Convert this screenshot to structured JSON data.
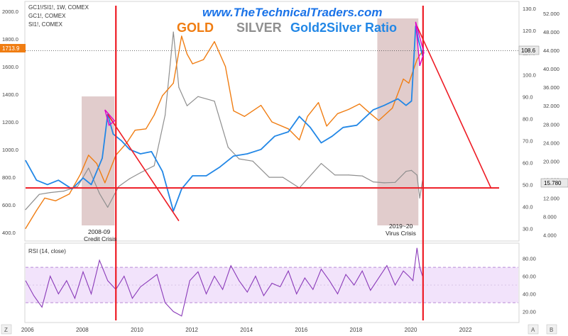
{
  "header": {
    "symbol_line": "GC1!/SI1!, 1W, COMEX",
    "series_line_1": "GC1!, COMEX",
    "series_line_2": "SI1!, COMEX",
    "website": "www.TheTechnicalTraders.com",
    "legend_gold": "GOLD",
    "legend_silver": "SILVER",
    "legend_ratio": "Gold2Silver Ratio"
  },
  "colors": {
    "gold": "#f07d12",
    "silver": "#8f8f8f",
    "ratio": "#2287e6",
    "red": "#ee1c25",
    "rsi": "#8a3ab9",
    "rsi_band": "#f2e3fb",
    "crisis_box": "#c9a3a3",
    "website": "#1a73e8"
  },
  "annotations": {
    "crisis_2008": [
      "2008-09",
      "Credit Crisis"
    ],
    "crisis_2020": [
      "2019~20",
      "Virus Crisis"
    ]
  },
  "price_labels": {
    "gold_last": "1713.9",
    "ratio_last": "108.6",
    "silver_last": "15.780"
  },
  "rsi_panel": {
    "label": "RSI (14, close)",
    "ticks": [
      "80.00",
      "60.00",
      "40.00",
      "20.00"
    ]
  },
  "bottom_buttons": {
    "left": "Z",
    "middle": "A",
    "right": "B"
  },
  "chart_data": {
    "type": "line",
    "x_ticks": [
      "2006",
      "2008",
      "2010",
      "2012",
      "2014",
      "2016",
      "2018",
      "2020",
      "2022"
    ],
    "gold_axis_ticks": [
      "2000.0",
      "1800.0",
      "1600.0",
      "1400.0",
      "1200.0",
      "1000.0",
      "800.0",
      "600.0",
      "400.0"
    ],
    "ratio_axis_ticks": [
      "130.0",
      "120.0",
      "110.0",
      "100.0",
      "90.0",
      "80.0",
      "70.0",
      "60.0",
      "50.0",
      "40.0",
      "30.0"
    ],
    "silver_axis_ticks": [
      "52.000",
      "48.000",
      "44.000",
      "40.000",
      "36.000",
      "32.000",
      "28.000",
      "24.000",
      "20.000",
      "16.000",
      "12.000",
      "8.000",
      "4.000"
    ],
    "gold_range": [
      350,
      2050
    ],
    "ratio_range": [
      25,
      132
    ],
    "silver_range": [
      3,
      54
    ],
    "series": [
      {
        "name": "GOLD",
        "x": [
          2005.9,
          2006.3,
          2006.6,
          2007.0,
          2007.5,
          2007.9,
          2008.2,
          2008.5,
          2008.8,
          2009.2,
          2009.6,
          2009.9,
          2010.3,
          2010.6,
          2010.9,
          2011.3,
          2011.6,
          2011.8,
          2012.0,
          2012.4,
          2012.8,
          2013.2,
          2013.5,
          2013.9,
          2014.5,
          2014.9,
          2015.5,
          2015.9,
          2016.2,
          2016.6,
          2016.9,
          2017.3,
          2017.7,
          2018.1,
          2018.5,
          2018.8,
          2019.3,
          2019.7,
          2019.9,
          2020.2,
          2020.4
        ],
        "y": [
          430,
          560,
          650,
          630,
          680,
          820,
          960,
          900,
          760,
          960,
          1050,
          1140,
          1150,
          1250,
          1390,
          1480,
          1820,
          1690,
          1620,
          1650,
          1780,
          1600,
          1280,
          1240,
          1320,
          1200,
          1150,
          1070,
          1240,
          1340,
          1170,
          1260,
          1290,
          1330,
          1260,
          1210,
          1300,
          1510,
          1480,
          1650,
          1714
        ]
      },
      {
        "name": "SILVER",
        "x": [
          2005.9,
          2006.4,
          2006.8,
          2007.3,
          2007.8,
          2008.2,
          2008.6,
          2008.9,
          2009.3,
          2009.7,
          2010.1,
          2010.6,
          2011.0,
          2011.3,
          2011.5,
          2011.8,
          2012.2,
          2012.8,
          2013.3,
          2013.7,
          2014.2,
          2014.8,
          2015.3,
          2015.9,
          2016.4,
          2016.7,
          2017.2,
          2017.7,
          2018.2,
          2018.6,
          2019.0,
          2019.4,
          2019.8,
          2020.0,
          2020.2,
          2020.3,
          2020.4
        ],
        "y": [
          9.5,
          12.8,
          13.2,
          13.5,
          14.5,
          18.5,
          13,
          10,
          14.5,
          16.2,
          17.5,
          19,
          30,
          48,
          36,
          32,
          34,
          33,
          23,
          20.5,
          20,
          16.5,
          16.5,
          14.2,
          17.5,
          19.5,
          17,
          17,
          16.8,
          15.5,
          15.3,
          15.4,
          17.8,
          18,
          17,
          12,
          15.8
        ]
      },
      {
        "name": "Gold2Silver Ratio",
        "x": [
          2005.9,
          2006.3,
          2006.7,
          2007.1,
          2007.6,
          2008.0,
          2008.3,
          2008.7,
          2008.9,
          2009.1,
          2009.4,
          2009.7,
          2010.1,
          2010.5,
          2010.9,
          2011.3,
          2011.6,
          2012.0,
          2012.5,
          2013.0,
          2013.5,
          2014.0,
          2014.5,
          2015.0,
          2015.5,
          2015.9,
          2016.3,
          2016.7,
          2017.1,
          2017.5,
          2018.0,
          2018.6,
          2019.0,
          2019.5,
          2019.8,
          2020.0,
          2020.15,
          2020.25,
          2020.4
        ],
        "y": [
          61,
          52,
          50,
          52,
          48,
          53,
          50,
          62,
          82,
          73,
          70,
          66,
          64,
          65,
          56,
          38,
          48,
          54,
          54,
          58,
          63,
          64,
          66,
          72,
          74,
          81,
          76,
          69,
          72,
          76,
          77,
          84,
          86,
          89,
          86,
          88,
          122,
          116,
          108.6
        ]
      }
    ],
    "rsi": {
      "name": "RSI (14, close)",
      "range": [
        10,
        95
      ],
      "bands": [
        30,
        70
      ],
      "x": [
        2005.9,
        2006.2,
        2006.5,
        2006.8,
        2007.1,
        2007.4,
        2007.7,
        2008.0,
        2008.3,
        2008.6,
        2008.9,
        2009.2,
        2009.5,
        2009.8,
        2010.1,
        2010.4,
        2010.7,
        2011.0,
        2011.3,
        2011.6,
        2011.9,
        2012.2,
        2012.5,
        2012.8,
        2013.1,
        2013.4,
        2013.7,
        2014.0,
        2014.3,
        2014.6,
        2014.9,
        2015.2,
        2015.5,
        2015.8,
        2016.1,
        2016.4,
        2016.7,
        2017.0,
        2017.3,
        2017.6,
        2017.9,
        2018.2,
        2018.5,
        2018.8,
        2019.1,
        2019.4,
        2019.7,
        2019.9,
        2020.05,
        2020.2,
        2020.3,
        2020.4
      ],
      "y": [
        55,
        38,
        25,
        60,
        40,
        55,
        35,
        65,
        40,
        78,
        55,
        45,
        60,
        35,
        48,
        55,
        62,
        30,
        20,
        15,
        55,
        65,
        40,
        60,
        45,
        72,
        55,
        42,
        60,
        38,
        52,
        48,
        66,
        40,
        58,
        45,
        68,
        55,
        40,
        62,
        50,
        66,
        44,
        58,
        72,
        50,
        66,
        60,
        55,
        92,
        70,
        60
      ]
    },
    "crisis_boxes": [
      {
        "label": "2008-09 Credit Crisis",
        "x0": 2007.95,
        "x1": 2009.15
      },
      {
        "label": "2019~20 Virus Crisis",
        "x0": 2018.75,
        "x1": 2020.25
      }
    ],
    "horizontal_level": {
      "ratio": 48.5
    },
    "vertical_lines_x": [
      2009.2,
      2020.42
    ],
    "trend_line_1": {
      "from": [
        2008.9,
        82
      ],
      "to": [
        2011.5,
        33.5
      ]
    },
    "trend_line_2": {
      "from": [
        2020.2,
        122
      ],
      "to": [
        2022.9,
        48.5
      ]
    }
  }
}
